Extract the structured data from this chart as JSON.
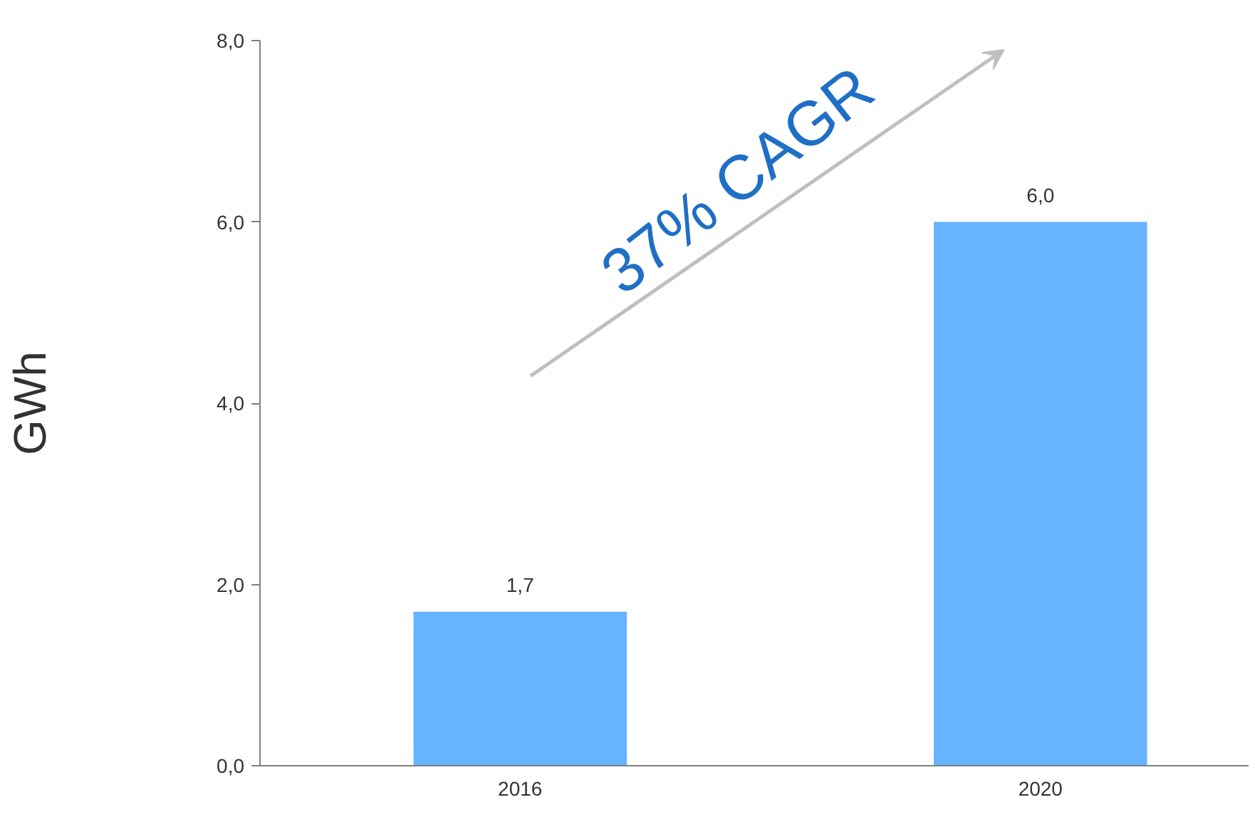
{
  "chart_data": {
    "type": "bar",
    "ylabel": "GWh",
    "categories": [
      "2016",
      "2020"
    ],
    "values": [
      1.7,
      6.0
    ],
    "value_labels": [
      "1,7",
      "6,0"
    ],
    "color": "#66b3ff",
    "ylim": [
      0,
      8
    ],
    "yticks": [
      {
        "value": 0,
        "label": "0,0"
      },
      {
        "value": 2,
        "label": "2,0"
      },
      {
        "value": 4,
        "label": "4,0"
      },
      {
        "value": 6,
        "label": "6,0"
      },
      {
        "value": 8,
        "label": "8,0"
      }
    ],
    "grid": false,
    "annotations": [
      "37% CAGR"
    ]
  }
}
